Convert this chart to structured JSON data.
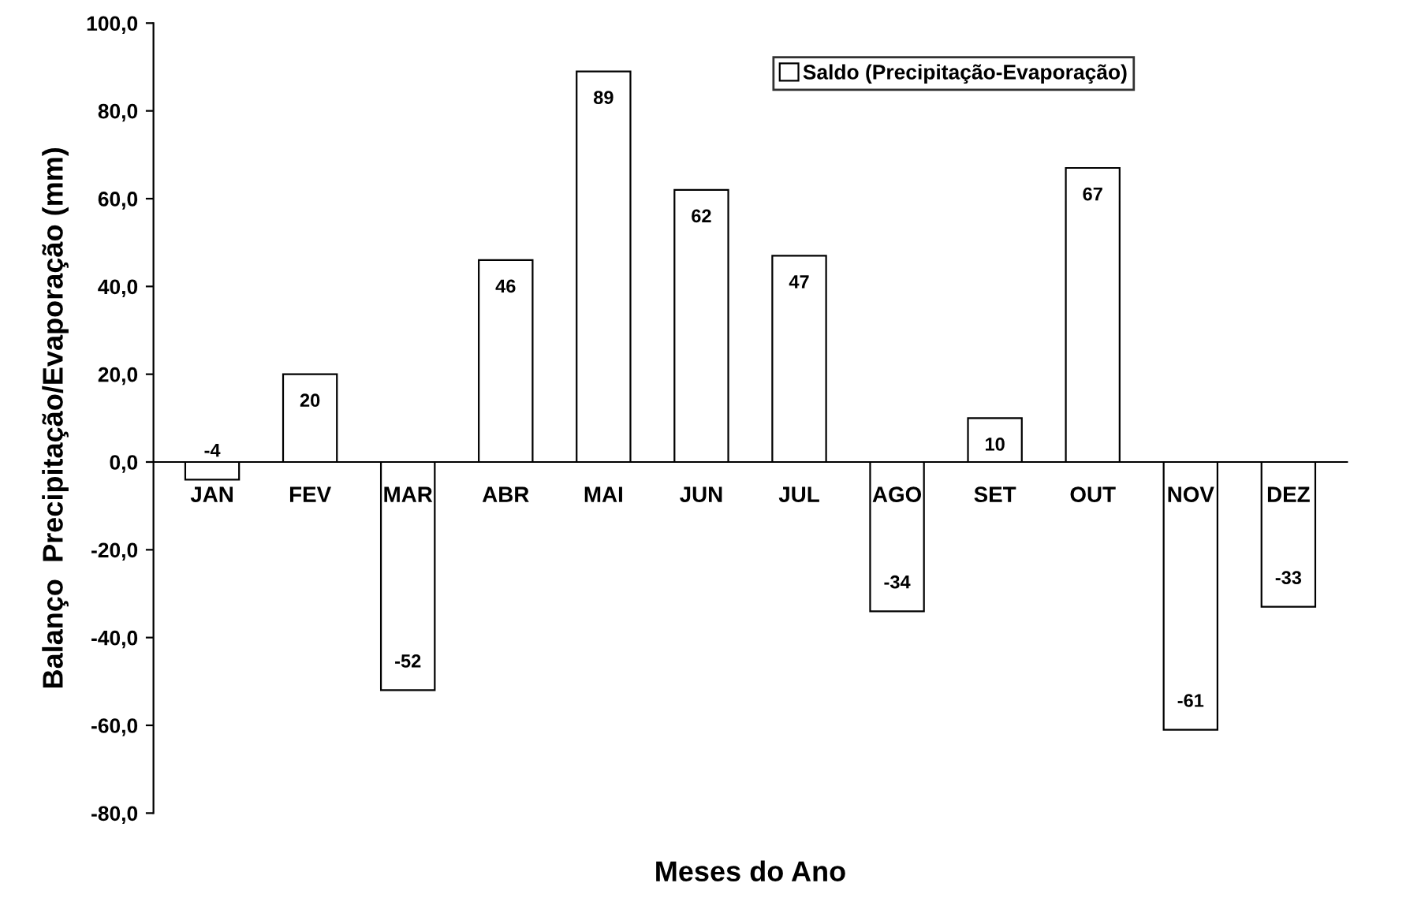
{
  "chart_data": {
    "type": "bar",
    "xlabel": "Meses do Ano",
    "ylabel": "Balanço  Precipitação/Evaporação (mm)",
    "categories": [
      "JAN",
      "FEV",
      "MAR",
      "ABR",
      "MAI",
      "JUN",
      "JUL",
      "AGO",
      "SET",
      "OUT",
      "NOV",
      "DEZ"
    ],
    "series": [
      {
        "name": "Saldo (Precipitação-Evaporação)",
        "color": "#ffffff",
        "values": [
          -4,
          20,
          -52,
          46,
          89,
          62,
          47,
          -34,
          10,
          67,
          -61,
          -33
        ]
      }
    ],
    "data_labels": true,
    "ylim": [
      -80,
      100
    ],
    "yticks": [
      {
        "value": -80,
        "label": "-80,0"
      },
      {
        "value": -60,
        "label": "-60,0"
      },
      {
        "value": -40,
        "label": "-40,0"
      },
      {
        "value": -20,
        "label": "-20,0"
      },
      {
        "value": 0,
        "label": "0,0"
      },
      {
        "value": 20,
        "label": "20,0"
      },
      {
        "value": 40,
        "label": "40,0"
      },
      {
        "value": 60,
        "label": "60,0"
      },
      {
        "value": 80,
        "label": "80,0"
      },
      {
        "value": 100,
        "label": "100,0"
      }
    ],
    "grid": false,
    "legend": "top right"
  }
}
